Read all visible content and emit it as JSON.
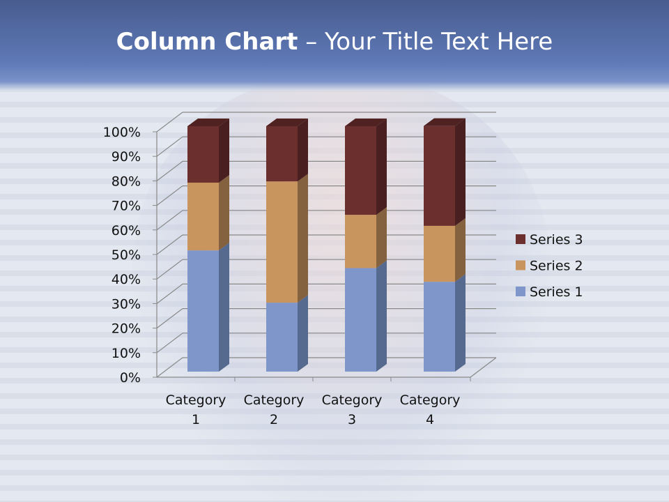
{
  "slide": {
    "title_bold": "Column Chart",
    "title_rest": " – Your Title Text Here"
  },
  "chart_data": {
    "type": "bar",
    "stacked": "percent",
    "style": "3d-column",
    "categories": [
      "Category 1",
      "Category 2",
      "Category 3",
      "Category 4"
    ],
    "series": [
      {
        "name": "Series 1",
        "values": [
          49.4,
          28.1,
          42.2,
          36.6
        ],
        "color": "#7f96cb",
        "side": "#56698f"
      },
      {
        "name": "Series 2",
        "values": [
          27.6,
          49.4,
          21.7,
          22.8
        ],
        "color": "#c9955f",
        "side": "#846240"
      },
      {
        "name": "Series 3",
        "values": [
          23.0,
          22.5,
          36.1,
          40.7
        ],
        "color": "#6b2f2e",
        "side": "#4a1f1f"
      }
    ],
    "yticks": [
      "0%",
      "10%",
      "20%",
      "30%",
      "40%",
      "50%",
      "60%",
      "70%",
      "80%",
      "90%",
      "100%"
    ],
    "ylim": [
      0,
      100
    ],
    "grid": true,
    "legend": "right"
  }
}
